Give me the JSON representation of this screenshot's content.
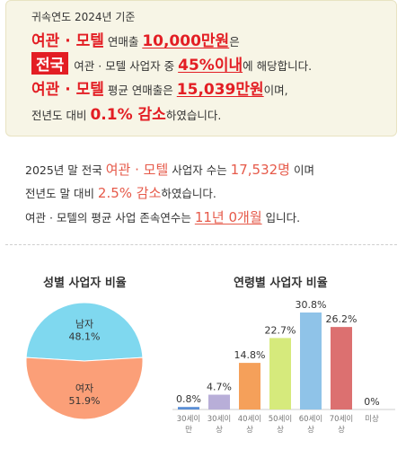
{
  "summary": {
    "line1": "귀속연도 2024년 기준",
    "line2": {
      "subject": "여관 · 모텔",
      "pre": " 연매출 ",
      "value": "10,000만원",
      "post": "은"
    },
    "line3": {
      "badge": "전국",
      "pre": "여관 · 모텔 사업자 중 ",
      "value": "45%이내",
      "post": "에 해당합니다."
    },
    "line4": {
      "subject": "여관 · 모텔",
      "pre": " 평균 연매출은 ",
      "value": "15,039만원",
      "post": "이며,"
    },
    "line5": {
      "pre": "전년도 대비 ",
      "value": "0.1% 감소",
      "post": "하였습니다."
    }
  },
  "stats": {
    "line1": {
      "pre": "2025년 말 전국 ",
      "subject": "여관 · 모텔",
      "mid": " 사업자 수는 ",
      "value": "17,532명",
      "post": " 이며"
    },
    "line2": {
      "pre": "전년도 말 대비 ",
      "value": "2.5% 감소",
      "post": "하였습니다."
    },
    "line3": {
      "pre": "여관 · 모텔의 평균 사업 존속연수는 ",
      "value": "11년 0개월",
      "post": " 입니다."
    }
  },
  "chart_data": [
    {
      "type": "pie",
      "title": "성별 사업자 비율",
      "labels": [
        "남자",
        "여자"
      ],
      "values": [
        48.1,
        51.9
      ],
      "value_labels": [
        "48.1%",
        "51.9%"
      ],
      "colors": [
        "#7fd8ef",
        "#fb9f78"
      ]
    },
    {
      "type": "bar",
      "title": "연령별 사업자 비율",
      "categories": [
        "30세이만",
        "30세이상",
        "40세이상",
        "50세이상",
        "60세이상",
        "70세이상",
        "미상"
      ],
      "tick_lines": [
        [
          "30세이",
          "만"
        ],
        [
          "30세이",
          "상"
        ],
        [
          "40세이",
          "상"
        ],
        [
          "50세이",
          "상"
        ],
        [
          "60세이",
          "상"
        ],
        [
          "70세이",
          "상"
        ],
        [
          "미상"
        ]
      ],
      "values": [
        0.8,
        4.7,
        14.8,
        22.7,
        30.8,
        26.2,
        0
      ],
      "value_labels": [
        "0.8%",
        "4.7%",
        "14.8%",
        "22.7%",
        "30.8%",
        "26.2%",
        "0%"
      ],
      "colors": [
        "#5b8fd6",
        "#b8aed8",
        "#f5a05a",
        "#d6ea7c",
        "#8fc3e8",
        "#dc7070",
        "#cccccc"
      ],
      "ylim": [
        0,
        30.8
      ]
    }
  ]
}
